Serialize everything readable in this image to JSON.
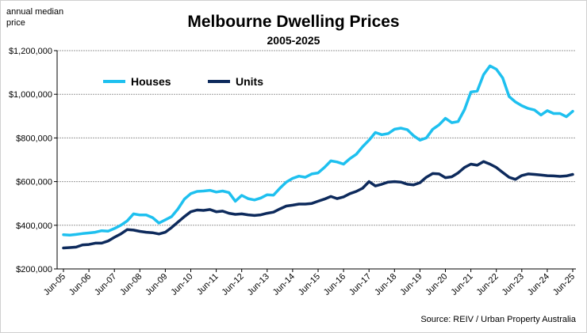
{
  "chart_data": {
    "type": "line",
    "title": "Melbourne Dwelling Prices",
    "subtitle": "2005-2025",
    "ylabel": "annual median price",
    "xlabel": "",
    "source": "Source: REIV / Urban Property Australia",
    "ylim": [
      200000,
      1200000
    ],
    "yticks": [
      200000,
      400000,
      600000,
      800000,
      1000000,
      1200000
    ],
    "ytick_labels": [
      "$200,000",
      "$400,000",
      "$600,000",
      "$800,000",
      "$1,000,000",
      "$1,200,000"
    ],
    "xtick_labels": [
      "Jun-05",
      "Jun-06",
      "Jun-07",
      "Jun-08",
      "Jun-09",
      "Jun-10",
      "Jun-11",
      "Jun-12",
      "Jun-13",
      "Jun-14",
      "Jun-15",
      "Jun-16",
      "Jun-17",
      "Jun-18",
      "Jun-19",
      "Jun-20",
      "Jun-21",
      "Jun-22",
      "Jun-23",
      "Jun-24",
      "Jun-25"
    ],
    "x_frequency": "quarterly",
    "grid": "horizontal dotted",
    "legend_position": "top-left",
    "series": [
      {
        "name": "Houses",
        "color": "#1ec0ef",
        "values": [
          357000,
          355000,
          358000,
          362000,
          365000,
          368000,
          375000,
          373000,
          385000,
          400000,
          420000,
          452000,
          447000,
          447000,
          435000,
          410000,
          425000,
          440000,
          475000,
          520000,
          545000,
          555000,
          557000,
          560000,
          552000,
          557000,
          550000,
          510000,
          537000,
          522000,
          516000,
          525000,
          540000,
          538000,
          570000,
          598000,
          615000,
          625000,
          620000,
          635000,
          640000,
          665000,
          695000,
          690000,
          680000,
          705000,
          725000,
          760000,
          790000,
          825000,
          815000,
          820000,
          840000,
          845000,
          838000,
          810000,
          790000,
          800000,
          840000,
          860000,
          890000,
          870000,
          875000,
          930000,
          1010000,
          1015000,
          1090000,
          1130000,
          1115000,
          1075000,
          990000,
          965000,
          948000,
          935000,
          928000,
          905000,
          925000,
          912000,
          912000,
          897000,
          922000
        ]
      },
      {
        "name": "Units",
        "color": "#0d2a5c",
        "values": [
          296000,
          298000,
          300000,
          310000,
          312000,
          318000,
          318000,
          328000,
          345000,
          360000,
          380000,
          378000,
          372000,
          368000,
          366000,
          360000,
          368000,
          390000,
          415000,
          440000,
          462000,
          470000,
          468000,
          472000,
          462000,
          465000,
          455000,
          450000,
          452000,
          448000,
          445000,
          448000,
          455000,
          460000,
          475000,
          488000,
          492000,
          497000,
          497000,
          500000,
          510000,
          520000,
          532000,
          522000,
          530000,
          545000,
          555000,
          570000,
          600000,
          580000,
          588000,
          598000,
          600000,
          598000,
          588000,
          585000,
          595000,
          620000,
          637000,
          635000,
          618000,
          622000,
          640000,
          665000,
          680000,
          675000,
          692000,
          680000,
          665000,
          642000,
          620000,
          610000,
          628000,
          635000,
          633000,
          630000,
          627000,
          626000,
          624000,
          626000,
          633000
        ]
      }
    ]
  }
}
